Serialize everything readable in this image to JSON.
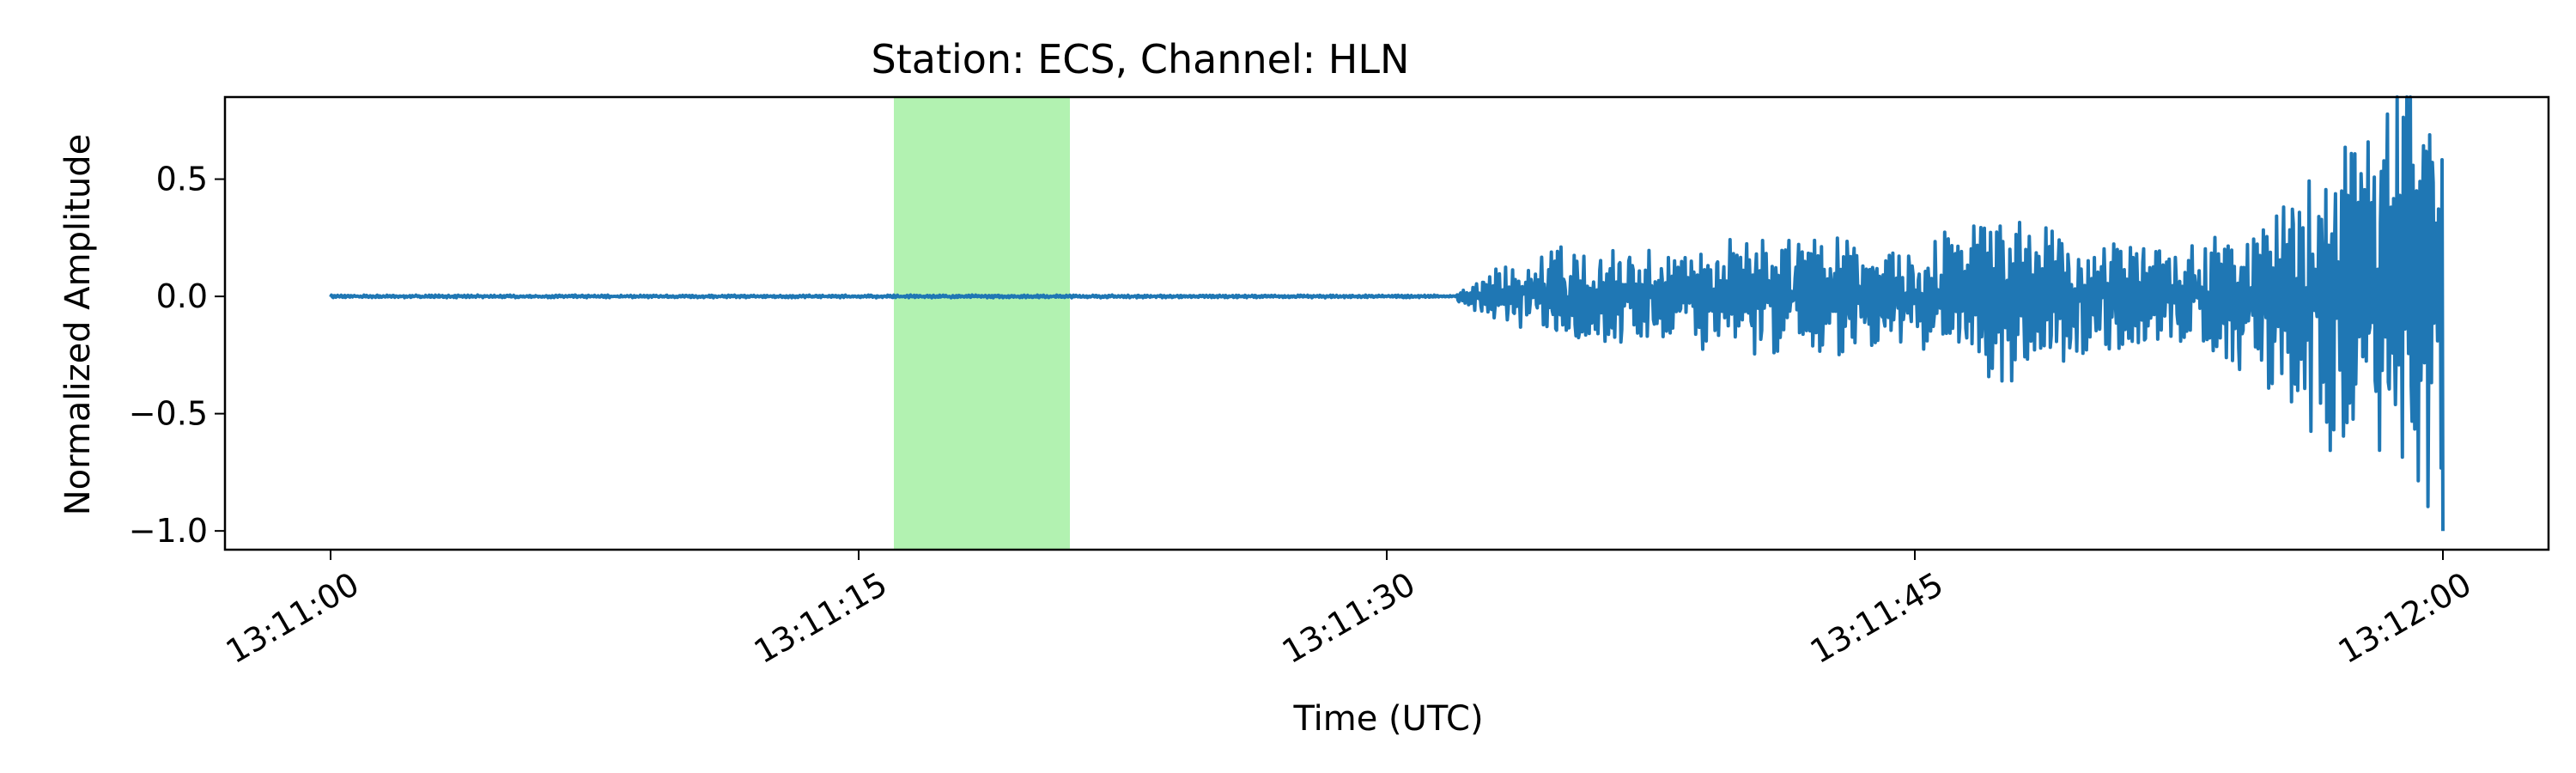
{
  "chart_data": {
    "type": "line",
    "title": "Station: ECS, Channel: HLN",
    "xlabel": "Time (UTC)",
    "ylabel": "Normalized Amplitude",
    "x_range_seconds_label": [
      "13:11:00",
      "13:12:00"
    ],
    "xlim_labels": [
      "13:10:57",
      "13:12:03"
    ],
    "ylim": [
      -1.08,
      0.85
    ],
    "x_ticks": [
      "13:11:00",
      "13:11:15",
      "13:11:30",
      "13:11:45",
      "13:12:00"
    ],
    "y_ticks": [
      {
        "value": 0.5,
        "label": "0.5"
      },
      {
        "value": 0.0,
        "label": "0.0"
      },
      {
        "value": -0.5,
        "label": "−0.5"
      },
      {
        "value": -1.0,
        "label": "−1.0"
      }
    ],
    "highlight_window": {
      "start": "13:11:16",
      "end": "13:11:21",
      "color": "#b2f2b1"
    },
    "series": [
      {
        "color": "#1f77b4",
        "description_points": [
          {
            "t": "13:11:00",
            "y": 0.0
          },
          {
            "t": "13:11:32",
            "y": 0.0
          },
          {
            "t": "13:11:33",
            "y": 0.12
          },
          {
            "t": "13:11:35",
            "y": -0.22
          },
          {
            "t": "13:11:36",
            "y": 0.24
          },
          {
            "t": "13:11:38",
            "y": -0.2
          },
          {
            "t": "13:11:40",
            "y": 0.29
          },
          {
            "t": "13:11:42",
            "y": -0.27
          },
          {
            "t": "13:11:45",
            "y": 0.22
          },
          {
            "t": "13:11:47",
            "y": -0.4
          },
          {
            "t": "13:11:50",
            "y": 0.26
          },
          {
            "t": "13:11:53",
            "y": -0.22
          },
          {
            "t": "13:11:56",
            "y": 0.54
          },
          {
            "t": "13:11:57",
            "y": -0.76
          },
          {
            "t": "13:11:58",
            "y": 0.76
          },
          {
            "t": "13:11:59",
            "y": -0.98
          },
          {
            "t": "13:12:00",
            "y": -1.0
          }
        ]
      }
    ]
  }
}
